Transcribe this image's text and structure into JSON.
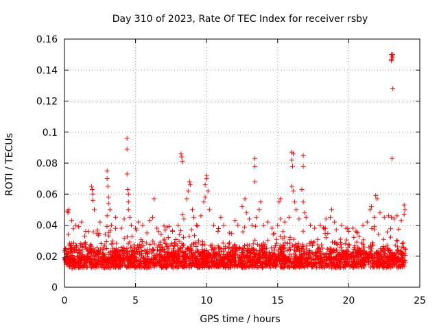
{
  "chart_data": {
    "type": "scatter",
    "title": "Day 310 of 2023, Rate Of TEC Index for receiver rsby",
    "xlabel": "GPS time / hours",
    "ylabel": "ROTI / TECUs",
    "xlim": [
      0,
      25
    ],
    "ylim": [
      0,
      0.16
    ],
    "x_ticks": [
      0,
      5,
      10,
      15,
      20,
      25
    ],
    "x_tick_labels": [
      "0",
      "5",
      "10",
      "15",
      "20",
      "25"
    ],
    "y_ticks": [
      0,
      0.02,
      0.04,
      0.06,
      0.08,
      0.1,
      0.12,
      0.14,
      0.16
    ],
    "y_tick_labels": [
      "0",
      "0.02",
      "0.04",
      "0.06",
      "0.08",
      "0.1",
      "0.12",
      "0.14",
      "0.16"
    ],
    "grid": true,
    "marker": "+",
    "marker_color": "#ff0000",
    "data_extent_hours": [
      0,
      24
    ],
    "baseline_band": [
      0.008,
      0.03
    ],
    "series": [
      {
        "name": "ROTI",
        "points": [
          [
            0.2,
            0.049
          ],
          [
            0.25,
            0.048
          ],
          [
            0.3,
            0.05
          ],
          [
            0.5,
            0.043
          ],
          [
            0.8,
            0.04
          ],
          [
            1.0,
            0.039
          ],
          [
            1.2,
            0.042
          ],
          [
            1.5,
            0.036
          ],
          [
            1.9,
            0.065
          ],
          [
            1.95,
            0.063
          ],
          [
            2.0,
            0.06
          ],
          [
            2.0,
            0.056
          ],
          [
            2.1,
            0.05
          ],
          [
            2.5,
            0.042
          ],
          [
            3.0,
            0.075
          ],
          [
            3.0,
            0.07
          ],
          [
            3.05,
            0.065
          ],
          [
            3.1,
            0.058
          ],
          [
            3.1,
            0.054
          ],
          [
            3.2,
            0.05
          ],
          [
            3.0,
            0.046
          ],
          [
            3.3,
            0.04
          ],
          [
            3.6,
            0.045
          ],
          [
            4.0,
            0.038
          ],
          [
            4.2,
            0.044
          ],
          [
            4.4,
            0.096
          ],
          [
            4.4,
            0.089
          ],
          [
            4.4,
            0.073
          ],
          [
            4.45,
            0.063
          ],
          [
            4.5,
            0.06
          ],
          [
            4.5,
            0.055
          ],
          [
            4.5,
            0.05
          ],
          [
            4.6,
            0.045
          ],
          [
            4.7,
            0.04
          ],
          [
            5.0,
            0.038
          ],
          [
            5.2,
            0.042
          ],
          [
            5.5,
            0.04
          ],
          [
            5.8,
            0.035
          ],
          [
            6.0,
            0.043
          ],
          [
            6.2,
            0.045
          ],
          [
            6.3,
            0.057
          ],
          [
            6.5,
            0.038
          ],
          [
            6.8,
            0.034
          ],
          [
            7.0,
            0.03
          ],
          [
            7.3,
            0.032
          ],
          [
            7.6,
            0.036
          ],
          [
            8.0,
            0.04
          ],
          [
            8.2,
            0.086
          ],
          [
            8.25,
            0.084
          ],
          [
            8.3,
            0.081
          ],
          [
            8.3,
            0.047
          ],
          [
            8.4,
            0.044
          ],
          [
            8.8,
            0.068
          ],
          [
            8.85,
            0.066
          ],
          [
            8.7,
            0.062
          ],
          [
            8.6,
            0.057
          ],
          [
            9.0,
            0.05
          ],
          [
            9.1,
            0.045
          ],
          [
            9.3,
            0.04
          ],
          [
            9.6,
            0.046
          ],
          [
            9.8,
            0.055
          ],
          [
            9.9,
            0.058
          ],
          [
            9.9,
            0.066
          ],
          [
            10.0,
            0.072
          ],
          [
            10.0,
            0.07
          ],
          [
            10.1,
            0.062
          ],
          [
            10.2,
            0.05
          ],
          [
            10.5,
            0.04
          ],
          [
            10.8,
            0.036
          ],
          [
            11.0,
            0.045
          ],
          [
            11.2,
            0.04
          ],
          [
            11.6,
            0.035
          ],
          [
            12.0,
            0.043
          ],
          [
            12.2,
            0.04
          ],
          [
            12.5,
            0.052
          ],
          [
            12.7,
            0.057
          ],
          [
            12.8,
            0.048
          ],
          [
            13.0,
            0.044
          ],
          [
            13.2,
            0.04
          ],
          [
            13.4,
            0.083
          ],
          [
            13.4,
            0.078
          ],
          [
            13.4,
            0.068
          ],
          [
            13.5,
            0.045
          ],
          [
            13.7,
            0.05
          ],
          [
            13.8,
            0.055
          ],
          [
            14.0,
            0.04
          ],
          [
            14.3,
            0.042
          ],
          [
            14.6,
            0.038
          ],
          [
            15.0,
            0.04
          ],
          [
            15.2,
            0.044
          ],
          [
            15.1,
            0.055
          ],
          [
            15.2,
            0.057
          ],
          [
            15.5,
            0.042
          ],
          [
            15.8,
            0.045
          ],
          [
            16.0,
            0.087
          ],
          [
            16.1,
            0.086
          ],
          [
            16.0,
            0.082
          ],
          [
            16.05,
            0.078
          ],
          [
            16.0,
            0.065
          ],
          [
            16.1,
            0.062
          ],
          [
            16.2,
            0.055
          ],
          [
            16.3,
            0.05
          ],
          [
            16.5,
            0.044
          ],
          [
            16.8,
            0.085
          ],
          [
            16.8,
            0.078
          ],
          [
            16.7,
            0.063
          ],
          [
            16.8,
            0.055
          ],
          [
            16.9,
            0.048
          ],
          [
            17.0,
            0.045
          ],
          [
            17.3,
            0.04
          ],
          [
            17.6,
            0.038
          ],
          [
            18.0,
            0.04
          ],
          [
            18.4,
            0.044
          ],
          [
            18.7,
            0.045
          ],
          [
            18.8,
            0.05
          ],
          [
            19.0,
            0.042
          ],
          [
            19.5,
            0.04
          ],
          [
            19.8,
            0.038
          ],
          [
            20.0,
            0.036
          ],
          [
            20.3,
            0.038
          ],
          [
            20.6,
            0.035
          ],
          [
            21.0,
            0.04
          ],
          [
            21.3,
            0.042
          ],
          [
            21.5,
            0.05
          ],
          [
            21.6,
            0.052
          ],
          [
            21.8,
            0.045
          ],
          [
            21.9,
            0.059
          ],
          [
            22.0,
            0.057
          ],
          [
            22.2,
            0.048
          ],
          [
            22.5,
            0.045
          ],
          [
            22.8,
            0.046
          ],
          [
            23.0,
            0.15
          ],
          [
            23.05,
            0.149
          ],
          [
            23.1,
            0.148
          ],
          [
            23.0,
            0.147
          ],
          [
            23.1,
            0.15
          ],
          [
            23.0,
            0.146
          ],
          [
            23.1,
            0.128
          ],
          [
            23.05,
            0.083
          ],
          [
            23.0,
            0.045
          ],
          [
            23.2,
            0.044
          ],
          [
            23.4,
            0.046
          ],
          [
            23.7,
            0.043
          ],
          [
            23.9,
            0.053
          ],
          [
            23.95,
            0.05
          ],
          [
            23.9,
            0.047
          ]
        ]
      }
    ]
  }
}
